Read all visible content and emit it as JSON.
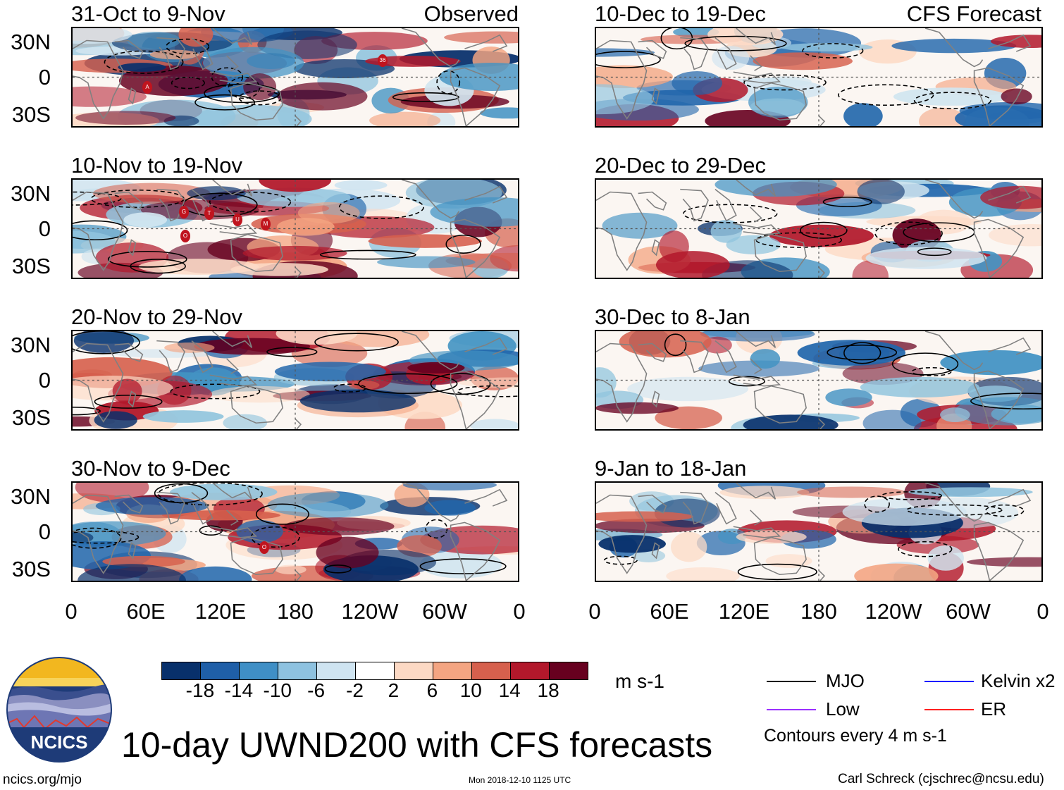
{
  "observed_label": "Observed",
  "forecast_label": "CFS Forecast",
  "observed_panels": [
    {
      "title": "31-Oct to 9-Nov",
      "storms": [
        "A",
        "36"
      ]
    },
    {
      "title": "10-Nov to 19-Nov",
      "storms": [
        "G",
        "T",
        "U",
        "M",
        "O"
      ]
    },
    {
      "title": "20-Nov to 29-Nov",
      "storms": []
    },
    {
      "title": "30-Nov to 9-Dec",
      "storms": [
        "O"
      ]
    }
  ],
  "forecast_panels": [
    {
      "title": "10-Dec to 19-Dec"
    },
    {
      "title": "20-Dec to 29-Dec"
    },
    {
      "title": "30-Dec to 8-Jan"
    },
    {
      "title": "9-Jan to 18-Jan"
    }
  ],
  "lat_labels": [
    "30N",
    "0",
    "30S"
  ],
  "lon_labels": [
    "0",
    "60E",
    "120E",
    "180",
    "120W",
    "60W",
    "0"
  ],
  "colorbar": {
    "colors": [
      "#08306b",
      "#1f5fa8",
      "#3f8fc6",
      "#8ec2e0",
      "#cfe4f1",
      "#ffffff",
      "#fcd9c4",
      "#f4a582",
      "#d6604d",
      "#b2182b",
      "#67001f"
    ],
    "ticks": [
      "-18",
      "-14",
      "-10",
      "-6",
      "-2",
      "2",
      "6",
      "10",
      "14",
      "18"
    ],
    "units": "m s-1"
  },
  "legend": {
    "items": [
      {
        "label": "MJO",
        "color": "#000000"
      },
      {
        "label": "Kelvin x2",
        "color": "#1a1aff"
      },
      {
        "label": "Low",
        "color": "#9b30ff"
      },
      {
        "label": "ER",
        "color": "#ff2020"
      }
    ],
    "contour_note": "Contours every 4 m s-1"
  },
  "logo_text": "NCICS",
  "main_title": "10-day UWND200 with CFS forecasts",
  "footer": {
    "url": "ncics.org/mjo",
    "timestamp": "Mon 2018-12-10 1125 UTC",
    "author": "Carl Schreck (cjschrec@ncsu.edu)"
  }
}
